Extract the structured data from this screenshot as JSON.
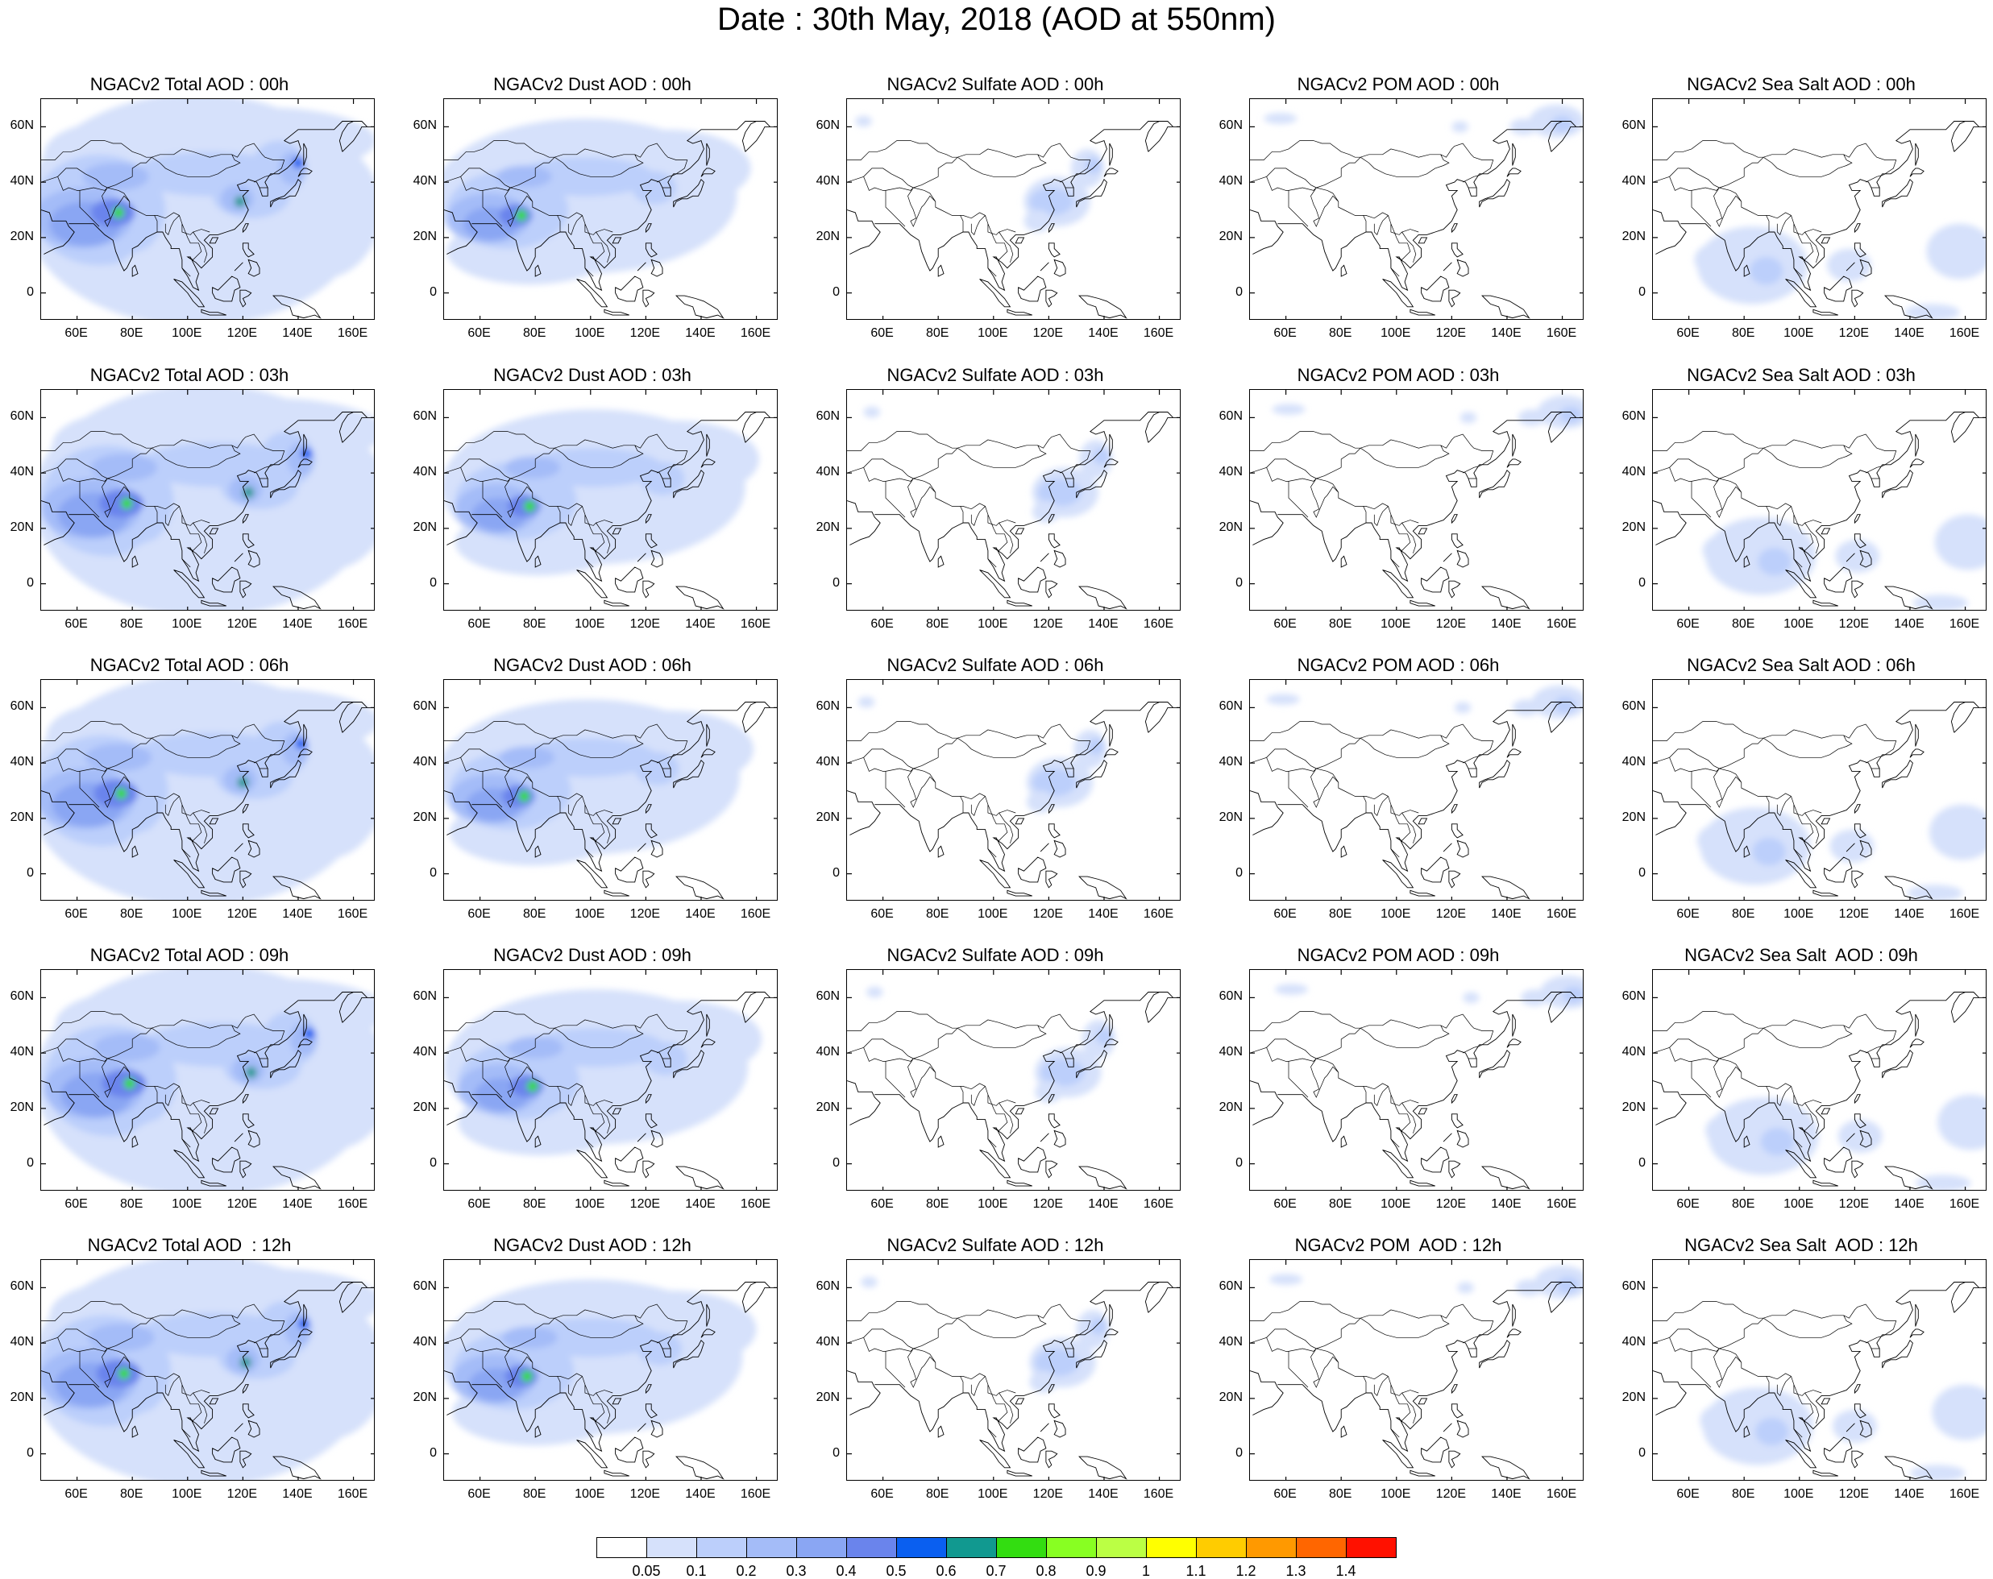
{
  "figure": {
    "title": "Date : 30th May, 2018 (AOD at 550nm)"
  },
  "panels": [
    [
      "NGACv2 Total AOD : 00h",
      "NGACv2 Dust AOD : 00h",
      "NGACv2 Sulfate AOD : 00h",
      "NGACv2 POM AOD : 00h",
      "NGACv2 Sea Salt AOD : 00h"
    ],
    [
      "NGACv2 Total AOD : 03h",
      "NGACv2 Dust AOD : 03h",
      "NGACv2 Sulfate AOD : 03h",
      "NGACv2 POM AOD : 03h",
      "NGACv2 Sea Salt AOD : 03h"
    ],
    [
      "NGACv2 Total AOD : 06h",
      "NGACv2 Dust AOD : 06h",
      "NGACv2 Sulfate AOD : 06h",
      "NGACv2 POM AOD : 06h",
      "NGACv2 Sea Salt AOD : 06h"
    ],
    [
      "NGACv2 Total AOD : 09h",
      "NGACv2 Dust AOD : 09h",
      "NGACv2 Sulfate AOD : 09h",
      "NGACv2 POM AOD : 09h",
      "NGACv2 Sea Salt  AOD : 09h"
    ],
    [
      "NGACv2 Total AOD  : 12h",
      "NGACv2 Dust AOD : 12h",
      "NGACv2 Sulfate AOD : 12h",
      "NGACv2 POM  AOD : 12h",
      "NGACv2 Sea Salt  AOD : 12h"
    ]
  ],
  "axes": {
    "lon_ticks": [
      "60E",
      "80E",
      "100E",
      "120E",
      "140E",
      "160E"
    ],
    "lat_ticks": [
      "60N",
      "40N",
      "20N",
      "0"
    ],
    "lon_range": [
      47,
      168
    ],
    "lat_range": [
      -10,
      70
    ]
  },
  "colorbar": {
    "colors": [
      "#ffffff",
      "#d6e1fb",
      "#bccffb",
      "#a4bcf8",
      "#8aa6f3",
      "#6a84ec",
      "#0a5ff0",
      "#119990",
      "#33dd11",
      "#88ff22",
      "#bbff44",
      "#ffff00",
      "#ffcc00",
      "#ff9900",
      "#ff6600",
      "#ff1100"
    ],
    "labels": [
      "0.05",
      "0.1",
      "0.2",
      "0.3",
      "0.4",
      "0.5",
      "0.6",
      "0.7",
      "0.8",
      "0.9",
      "1",
      "1.1",
      "1.2",
      "1.3",
      "1.4"
    ]
  }
}
